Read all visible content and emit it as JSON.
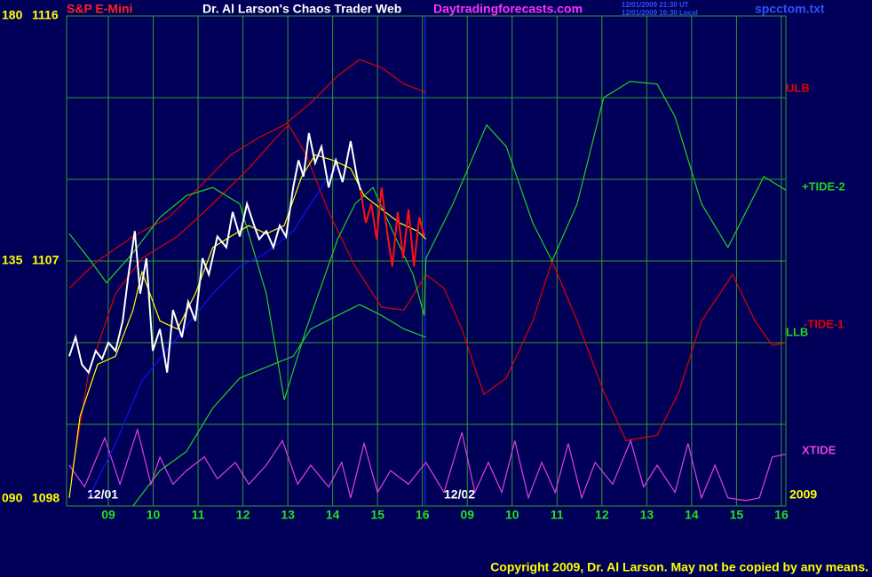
{
  "chart_data": {
    "type": "line",
    "title": "Dr. Al Larson's Chaos Trader Web",
    "instrument": "S&P E-Mini",
    "website": "Daytradingforecasts.com",
    "timestamps": [
      "12/01/2009 21:30 UT",
      "12/01/2009 16:30 Local"
    ],
    "file": "spcctom.txt",
    "copyright": "Copyright 2009, Dr. Al Larson. May not be copied by any means.",
    "date_labels": [
      "12/01",
      "12/02",
      "2009"
    ],
    "background": "#000058",
    "grid_color": "#2f9a2f",
    "grid": true,
    "xlim": [
      0.07,
      16.1
    ],
    "xticks": [
      {
        "value": 1,
        "label": "09"
      },
      {
        "value": 2,
        "label": "10"
      },
      {
        "value": 3,
        "label": "11"
      },
      {
        "value": 4,
        "label": "12"
      },
      {
        "value": 5,
        "label": "13"
      },
      {
        "value": 6,
        "label": "14"
      },
      {
        "value": 7,
        "label": "15"
      },
      {
        "value": 8,
        "label": "16"
      },
      {
        "value": 9,
        "label": "09"
      },
      {
        "value": 10,
        "label": "10"
      },
      {
        "value": 11,
        "label": "11"
      },
      {
        "value": 12,
        "label": "12"
      },
      {
        "value": 13,
        "label": "13"
      },
      {
        "value": 14,
        "label": "14"
      },
      {
        "value": 15,
        "label": "15"
      },
      {
        "value": 16,
        "label": "16"
      }
    ],
    "ylim": [
      1098,
      1116
    ],
    "yticks": [
      1116,
      1107,
      1098
    ],
    "ygrid": [
      1098,
      1101,
      1104,
      1107,
      1110,
      1113,
      1116
    ],
    "y2lim": [
      90,
      180
    ],
    "y2ticks": [
      180,
      135,
      {
        "value": 90,
        "label": "090"
      }
    ],
    "series": [
      {
        "name": "ULB",
        "color": "#e00000",
        "x": [
          0.13,
          0.76,
          1.55,
          2.35,
          3.14,
          3.73,
          4.32,
          4.92,
          5.51,
          6.11,
          6.6,
          7.09,
          7.59,
          8.08
        ],
        "values": [
          1106.0,
          1107.0,
          1107.9,
          1108.6,
          1109.9,
          1110.9,
          1111.5,
          1112.0,
          1112.8,
          1113.8,
          1114.4,
          1114.1,
          1113.5,
          1113.2
        ]
      },
      {
        "name": "-TIDE-1",
        "color": "#e00000",
        "x": [
          0.17,
          0.56,
          1.16,
          1.75,
          2.54,
          3.33,
          4.13,
          4.72,
          5.02,
          5.41,
          5.91,
          6.5,
          7.09,
          7.59,
          8.08,
          8.48,
          8.88,
          9.37,
          9.87,
          10.46,
          10.89,
          11.45,
          12.04,
          12.54,
          13.23,
          13.72,
          14.22,
          14.91,
          15.41,
          15.8,
          16.1
        ],
        "values": [
          1099.0,
          1102.9,
          1105.8,
          1107.1,
          1107.9,
          1109.1,
          1110.4,
          1111.5,
          1112.0,
          1110.9,
          1108.8,
          1106.8,
          1105.3,
          1105.2,
          1106.5,
          1106.0,
          1104.5,
          1102.1,
          1102.7,
          1104.8,
          1107.0,
          1104.8,
          1102.2,
          1100.4,
          1100.6,
          1102.2,
          1104.8,
          1106.5,
          1104.8,
          1103.9,
          1104.0
        ]
      },
      {
        "name": "+TIDE-2",
        "color": "#20d020",
        "x": [
          0.13,
          0.56,
          0.96,
          1.55,
          2.15,
          2.74,
          3.33,
          3.93,
          4.52,
          4.92,
          5.41,
          6.11,
          6.5,
          6.9,
          7.39,
          7.79,
          8.04,
          8.08,
          8.68,
          9.43,
          9.87,
          10.46,
          10.89,
          11.45,
          12.04,
          12.63,
          13.23,
          13.63,
          14.22,
          14.81,
          15.21,
          15.61,
          16.1
        ],
        "values": [
          1108.0,
          1107.1,
          1106.2,
          1107.3,
          1108.6,
          1109.4,
          1109.7,
          1109.1,
          1105.8,
          1101.9,
          1104.5,
          1107.8,
          1109.1,
          1109.7,
          1107.9,
          1106.5,
          1105.0,
          1107.1,
          1109.1,
          1112.0,
          1111.2,
          1108.4,
          1107.0,
          1109.1,
          1113.0,
          1113.6,
          1113.5,
          1112.3,
          1109.1,
          1107.5,
          1108.8,
          1110.1,
          1109.6
        ]
      },
      {
        "name": "LLB",
        "color": "#20d020",
        "x": [
          1.55,
          2.15,
          2.74,
          3.33,
          3.93,
          4.52,
          5.12,
          5.51,
          6.11,
          6.6,
          7.09,
          7.59,
          8.08
        ],
        "values": [
          1098.0,
          1099.3,
          1100.0,
          1101.6,
          1102.7,
          1103.1,
          1103.5,
          1104.5,
          1105.0,
          1105.4,
          1105.0,
          1104.5,
          1104.2
        ]
      },
      {
        "name": "XTIDE",
        "color": "#e040e0",
        "x": [
          0.13,
          0.47,
          0.92,
          1.26,
          1.65,
          1.95,
          2.15,
          2.44,
          2.74,
          3.14,
          3.43,
          3.83,
          4.13,
          4.52,
          4.88,
          5.22,
          5.51,
          5.91,
          6.2,
          6.4,
          6.7,
          7.0,
          7.29,
          7.69,
          8.08,
          8.48,
          8.88,
          9.17,
          9.47,
          9.77,
          10.06,
          10.36,
          10.66,
          10.96,
          11.25,
          11.55,
          11.85,
          12.24,
          12.64,
          12.93,
          13.23,
          13.63,
          13.92,
          14.22,
          14.52,
          14.81,
          15.21,
          15.51,
          15.8,
          16.1
        ],
        "values": [
          1099.5,
          1098.7,
          1100.5,
          1098.8,
          1100.8,
          1098.8,
          1099.8,
          1098.8,
          1099.3,
          1099.8,
          1099.0,
          1099.6,
          1098.8,
          1099.5,
          1100.4,
          1098.8,
          1099.5,
          1098.7,
          1099.6,
          1098.3,
          1100.3,
          1098.5,
          1099.3,
          1098.8,
          1099.6,
          1098.5,
          1100.7,
          1098.5,
          1099.6,
          1098.5,
          1100.4,
          1098.3,
          1099.6,
          1098.5,
          1100.3,
          1098.3,
          1099.6,
          1098.8,
          1100.4,
          1098.7,
          1099.5,
          1098.5,
          1100.3,
          1098.3,
          1099.5,
          1098.3,
          1098.2,
          1098.3,
          1099.8,
          1099.9
        ]
      },
      {
        "color": "#1010ff",
        "x": [
          0.56,
          1.16,
          1.75,
          2.54,
          3.33,
          3.93,
          4.52,
          5.12,
          5.51,
          5.91,
          6.11
        ],
        "values": [
          1098.3,
          1100.3,
          1102.6,
          1104.2,
          1105.8,
          1106.8,
          1107.3,
          1108.1,
          1109.1,
          1110.1,
          1110.4
        ]
      },
      {
        "color": "#ffff00",
        "x": [
          0.13,
          0.37,
          0.76,
          1.16,
          1.55,
          1.75,
          2.15,
          2.54,
          2.94,
          3.33,
          3.73,
          4.13,
          4.52,
          4.92,
          5.31,
          5.61,
          6.01,
          6.4,
          6.7,
          7.09,
          7.49,
          7.89,
          8.08
        ],
        "values": [
          1098.3,
          1101.3,
          1103.2,
          1103.5,
          1105.2,
          1106.6,
          1104.8,
          1104.5,
          1105.8,
          1107.5,
          1107.9,
          1108.3,
          1108.0,
          1108.3,
          1110.1,
          1110.9,
          1110.7,
          1110.4,
          1109.4,
          1108.9,
          1108.4,
          1108.1,
          1107.8
        ]
      },
      {
        "color": "#ffffff",
        "x": [
          0.13,
          0.27,
          0.41,
          0.56,
          0.72,
          0.86,
          1.0,
          1.16,
          1.32,
          1.45,
          1.59,
          1.71,
          1.85,
          1.99,
          2.15,
          2.31,
          2.44,
          2.64,
          2.78,
          2.94,
          3.1,
          3.24,
          3.43,
          3.63,
          3.77,
          3.93,
          4.09,
          4.23,
          4.36,
          4.52,
          4.68,
          4.82,
          4.96,
          5.12,
          5.24,
          5.35,
          5.47,
          5.61,
          5.75,
          5.91,
          6.07,
          6.22,
          6.4,
          6.54,
          6.62
        ],
        "values": [
          1103.5,
          1104.2,
          1103.2,
          1102.9,
          1103.7,
          1103.4,
          1104.0,
          1103.7,
          1104.8,
          1106.5,
          1108.1,
          1105.8,
          1107.1,
          1103.7,
          1104.5,
          1102.9,
          1105.2,
          1104.2,
          1105.5,
          1104.8,
          1107.1,
          1106.5,
          1107.9,
          1107.5,
          1108.8,
          1107.9,
          1109.1,
          1108.4,
          1107.8,
          1108.1,
          1107.5,
          1108.3,
          1107.9,
          1109.7,
          1110.7,
          1110.1,
          1111.7,
          1110.6,
          1111.2,
          1109.7,
          1110.7,
          1109.9,
          1111.4,
          1110.1,
          1109.6
        ]
      },
      {
        "color": "#ff1010",
        "x": [
          6.62,
          6.74,
          6.86,
          6.98,
          7.09,
          7.21,
          7.33,
          7.45,
          7.57,
          7.69,
          7.81,
          7.93,
          8.04
        ],
        "values": [
          1109.6,
          1108.4,
          1109.1,
          1107.8,
          1109.7,
          1108.1,
          1106.8,
          1108.8,
          1107.1,
          1108.9,
          1106.8,
          1108.6,
          1107.9
        ]
      }
    ]
  }
}
